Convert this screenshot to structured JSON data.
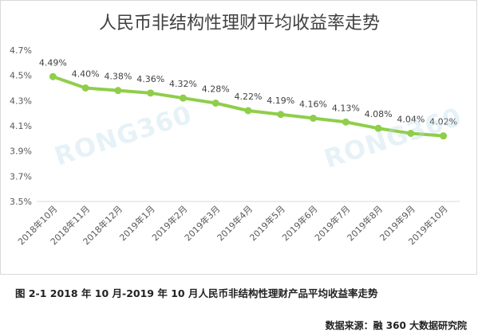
{
  "chart_title": "人民币非结构性理财平均收益率走势",
  "caption": "图 2-1  2018 年 10 月-2019 年 10 月人民币非结构性理财产品平均收益率走势",
  "source": "数据来源：融 360 大数据研究院",
  "watermark": "RONG360",
  "colors": {
    "line": "#8fce4a",
    "axis_text": "#595959",
    "grid": "#e6e6e6"
  },
  "chart_data": {
    "type": "line",
    "title": "人民币非结构性理财平均收益率走势",
    "xlabel": "",
    "ylabel": "",
    "categories": [
      "2018年10月",
      "2018年11月",
      "2018年12月",
      "2019年1月",
      "2019年2月",
      "2019年3月",
      "2019年4月",
      "2019年5月",
      "2019年6月",
      "2019年7月",
      "2019年8月",
      "2019年9月",
      "2019年10月"
    ],
    "series": [
      {
        "values": [
          4.49,
          4.4,
          4.38,
          4.36,
          4.32,
          4.28,
          4.22,
          4.19,
          4.16,
          4.13,
          4.08,
          4.04,
          4.02
        ],
        "labels": [
          "4.49%",
          "4.40%",
          "4.38%",
          "4.36%",
          "4.32%",
          "4.28%",
          "4.22%",
          "4.19%",
          "4.16%",
          "4.13%",
          "4.08%",
          "4.04%",
          "4.02%"
        ]
      }
    ],
    "ylim": [
      3.5,
      4.7
    ],
    "yticks": [
      3.5,
      3.7,
      3.9,
      4.1,
      4.3,
      4.5,
      4.7
    ],
    "ytick_labels": [
      "3.5%",
      "3.7%",
      "3.9%",
      "4.1%",
      "4.3%",
      "4.5%",
      "4.7%"
    ],
    "grid": false,
    "legend": "none"
  }
}
